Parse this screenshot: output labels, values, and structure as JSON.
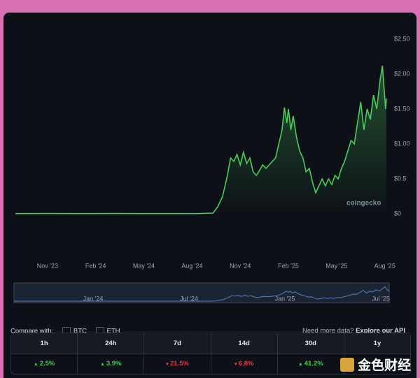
{
  "chart_data": {
    "type": "line",
    "x": [
      0,
      2,
      4,
      6,
      8,
      10,
      11.5,
      12.3,
      12.6,
      12.9,
      13.2,
      13.4,
      13.6,
      13.8,
      14.0,
      14.2,
      14.4,
      14.6,
      14.8,
      15.0,
      15.2,
      15.4,
      15.6,
      15.8,
      16.0,
      16.2,
      16.4,
      16.6,
      16.75,
      16.9,
      17.0,
      17.15,
      17.3,
      17.5,
      17.7,
      17.9,
      18.1,
      18.3,
      18.5,
      18.7,
      18.9,
      19.1,
      19.3,
      19.5,
      19.7,
      19.9,
      20.1,
      20.3,
      20.5,
      20.7,
      20.9,
      21.1,
      21.3,
      21.5,
      21.7,
      21.9,
      22.1,
      22.3,
      22.5,
      22.7,
      22.85,
      22.95,
      23.05,
      23.1
    ],
    "series": [
      {
        "color": "#4bcc5c",
        "values": [
          0.003,
          0.004,
          0.003,
          0.004,
          0.003,
          0.003,
          0.004,
          0.01,
          0.1,
          0.25,
          0.55,
          0.8,
          0.75,
          0.85,
          0.7,
          0.88,
          0.72,
          0.8,
          0.6,
          0.55,
          0.62,
          0.7,
          0.65,
          0.7,
          0.75,
          0.8,
          1.0,
          1.2,
          1.52,
          1.3,
          1.5,
          1.2,
          1.4,
          1.1,
          0.9,
          0.8,
          0.6,
          0.65,
          0.45,
          0.3,
          0.4,
          0.5,
          0.4,
          0.5,
          0.42,
          0.55,
          0.5,
          0.65,
          0.75,
          0.9,
          1.05,
          1.0,
          1.3,
          1.6,
          1.2,
          1.5,
          1.35,
          1.7,
          1.5,
          1.9,
          2.12,
          1.8,
          1.5,
          1.65
        ]
      }
    ],
    "xlim": [
      0,
      23.1
    ],
    "xticks": [
      {
        "value": 2,
        "label": "Nov '23"
      },
      {
        "value": 5,
        "label": "Feb '24"
      },
      {
        "value": 8,
        "label": "May '24"
      },
      {
        "value": 11,
        "label": "Aug '24"
      },
      {
        "value": 14,
        "label": "Nov '24"
      },
      {
        "value": 17,
        "label": "Feb '25"
      },
      {
        "value": 20,
        "label": "May '25"
      },
      {
        "value": 23,
        "label": "Aug '25"
      }
    ],
    "ylim": [
      0,
      2.5
    ],
    "yticks": [
      {
        "value": 0,
        "label": "$0"
      },
      {
        "value": 0.5,
        "label": "$0.5"
      },
      {
        "value": 1,
        "label": "$1.00"
      },
      {
        "value": 1.5,
        "label": "$1.50"
      },
      {
        "value": 2,
        "label": "$2.00"
      },
      {
        "value": 2.5,
        "label": "$2.50"
      }
    ],
    "grid": false,
    "watermark": "coingecko",
    "navigator": {
      "labels": [
        "Jan '24",
        "Jul '24",
        "Jan '25",
        "Jul '25"
      ]
    }
  },
  "compare": {
    "label": "Compare with:",
    "options": [
      "BTC",
      "ETH"
    ],
    "prompt": "Need more data?",
    "link": "Explore our API"
  },
  "stats": [
    {
      "label": "1h",
      "change": "2.5%",
      "direction": "up"
    },
    {
      "label": "24h",
      "change": "3.9%",
      "direction": "up"
    },
    {
      "label": "7d",
      "change": "21.5%",
      "direction": "down"
    },
    {
      "label": "14d",
      "change": "6.8%",
      "direction": "down"
    },
    {
      "label": "30d",
      "change": "41.2%",
      "direction": "up"
    },
    {
      "label": "1y"
    }
  ],
  "logo": "金色财经"
}
